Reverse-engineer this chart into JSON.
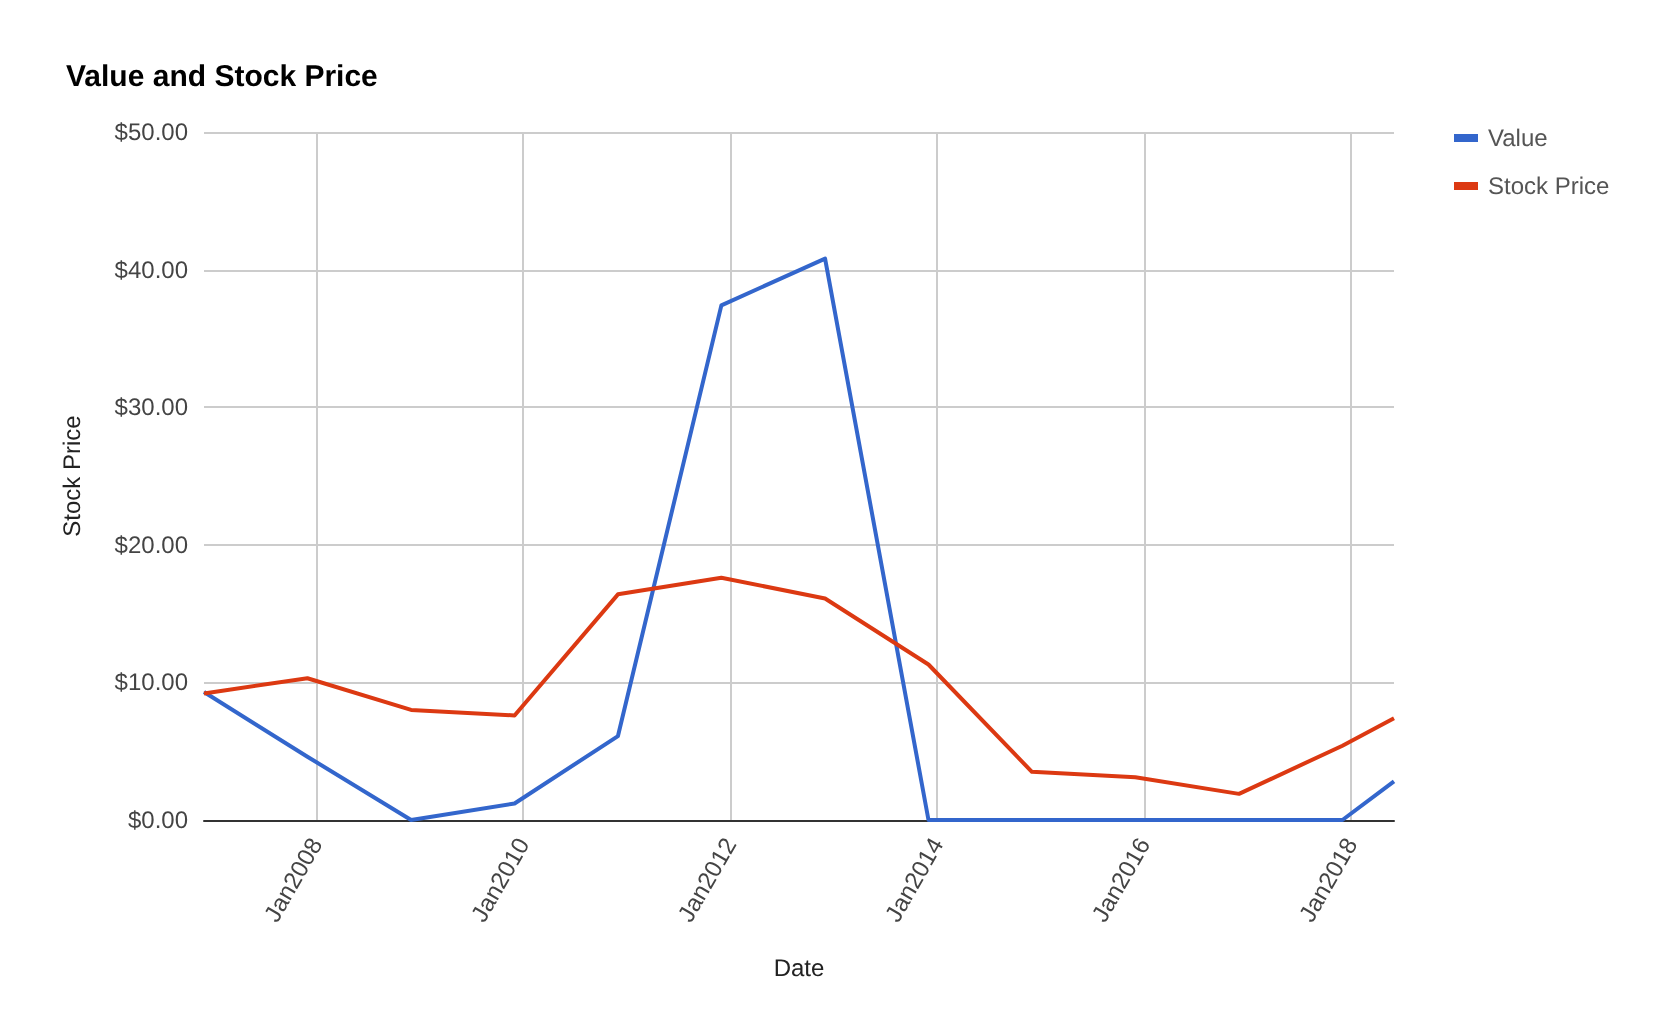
{
  "chart_data": {
    "type": "line",
    "title": "Value and Stock Price",
    "xlabel": "Date",
    "ylabel": "Stock Price",
    "x": [
      "2006-12",
      "2007-12",
      "2008-12",
      "2009-12",
      "2010-12",
      "2011-12",
      "2012-12",
      "2013-12",
      "2014-12",
      "2015-12",
      "2016-12",
      "2017-12",
      "2018-06"
    ],
    "series": [
      {
        "name": "Value",
        "color": "#3366cc",
        "values": [
          9.3,
          4.6,
          0,
          1.2,
          6.1,
          37.4,
          40.8,
          0,
          0,
          0,
          0,
          0,
          2.8
        ]
      },
      {
        "name": "Stock Price",
        "color": "#dc3912",
        "values": [
          9.2,
          10.3,
          8.0,
          7.6,
          16.4,
          17.6,
          16.1,
          11.3,
          3.5,
          3.1,
          1.9,
          5.4,
          7.4
        ]
      }
    ],
    "xlim": [
      "2006-12",
      "2018-06"
    ],
    "xticks": [
      {
        "value": "2008-01",
        "label": "Jan2008"
      },
      {
        "value": "2010-01",
        "label": "Jan2010"
      },
      {
        "value": "2012-01",
        "label": "Jan2012"
      },
      {
        "value": "2014-01",
        "label": "Jan2014"
      },
      {
        "value": "2016-01",
        "label": "Jan2016"
      },
      {
        "value": "2018-01",
        "label": "Jan2018"
      }
    ],
    "ylim": [
      0,
      50
    ],
    "yticks": [
      {
        "value": 0,
        "label": "$0.00"
      },
      {
        "value": 10,
        "label": "$10.00"
      },
      {
        "value": 20,
        "label": "$20.00"
      },
      {
        "value": 30,
        "label": "$30.00"
      },
      {
        "value": 40,
        "label": "$40.00"
      },
      {
        "value": 50,
        "label": "$50.00"
      }
    ],
    "grid": true,
    "legend": "top right",
    "marker": "none",
    "line_style": "solid"
  }
}
